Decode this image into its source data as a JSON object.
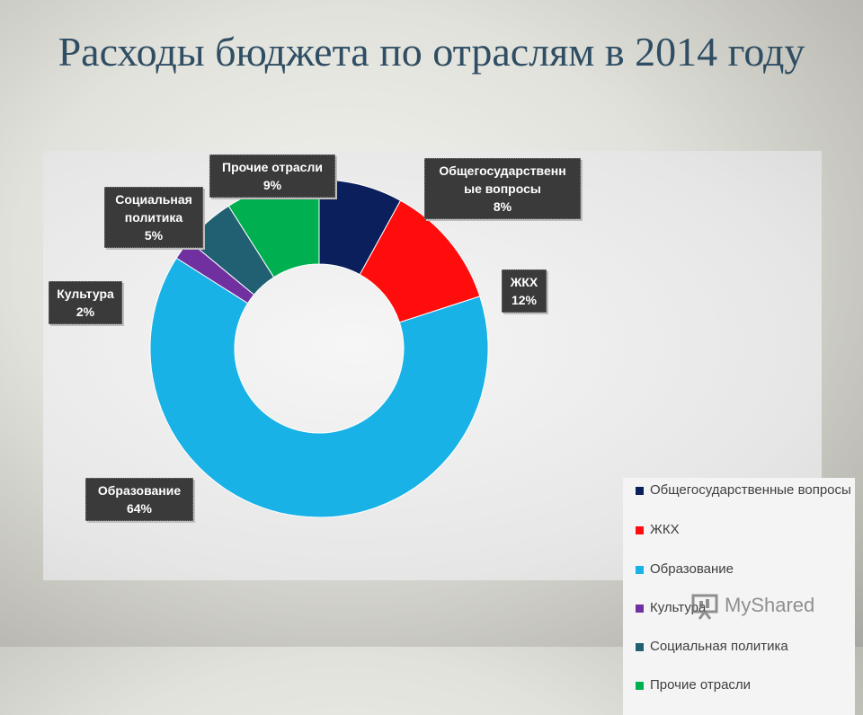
{
  "slide_title": "Расходы бюджета по отраслям в 2014 году",
  "chart_data": {
    "type": "pie",
    "subtype": "doughnut",
    "title": "",
    "categories": [
      "Общегосударственные вопросы",
      "ЖКХ",
      "Образование",
      "Культура",
      "Социальная политика",
      "Прочие отрасли"
    ],
    "values": [
      8,
      12,
      64,
      2,
      5,
      9
    ],
    "unit": "%",
    "colors": [
      "#0b1f5c",
      "#ff0d0d",
      "#19b2e6",
      "#7030a0",
      "#215f73",
      "#00b050"
    ],
    "data_labels": [
      {
        "name": "Общегосударственн ые вопросы",
        "value": "8%"
      },
      {
        "name": "ЖКХ",
        "value": "12%"
      },
      {
        "name": "Образование",
        "value": "64%"
      },
      {
        "name": "Культура",
        "value": "2%"
      },
      {
        "name": "Социальная политика",
        "value": "5%"
      },
      {
        "name": "Прочие отрасли",
        "value": "9%"
      }
    ],
    "legend": {
      "placement": "right",
      "entries": [
        "Общегосударственные вопросы",
        "ЖКХ",
        "Образование",
        "Культура",
        "Социальная политика",
        "Прочие отрасли"
      ]
    }
  },
  "watermark": {
    "text": "MyShared",
    "icon": "presentation-icon"
  }
}
